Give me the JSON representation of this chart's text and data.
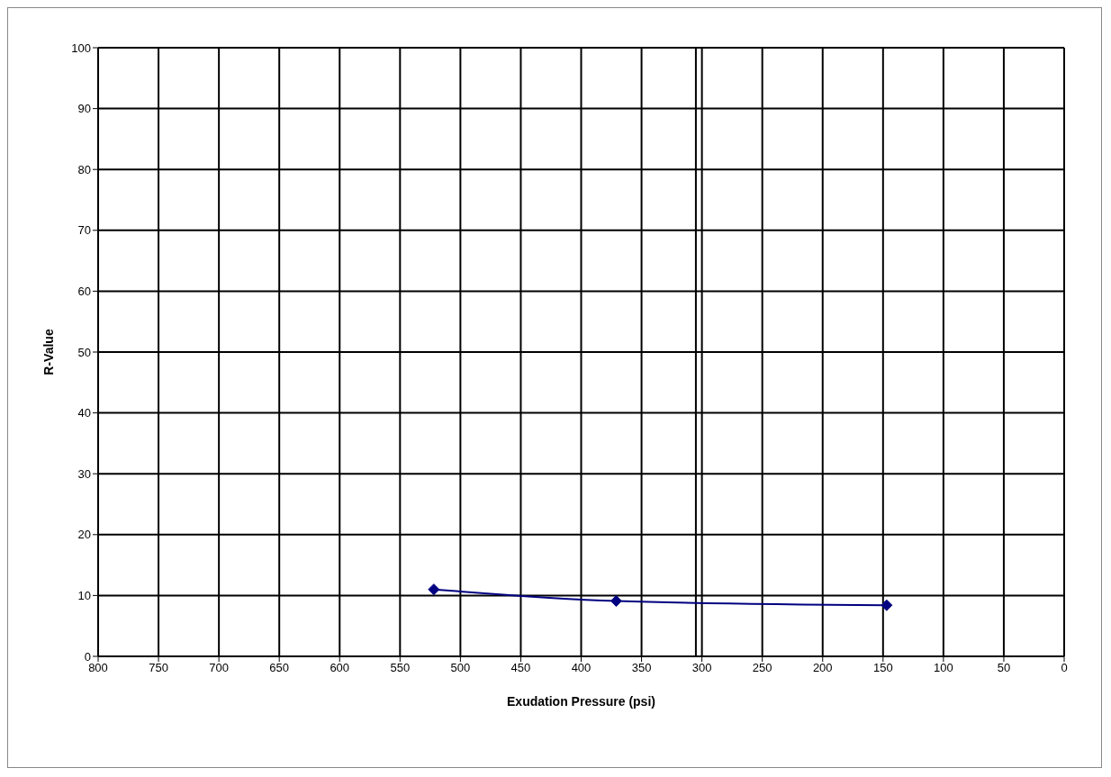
{
  "chart_data": {
    "type": "line",
    "xlabel": "Exudation Pressure (psi)",
    "ylabel": "R-Value",
    "x": [
      522,
      371,
      147
    ],
    "series": [
      {
        "color": "#000080",
        "values": [
          11.0,
          9.1,
          8.4
        ]
      }
    ],
    "xlim": [
      800,
      0
    ],
    "xticks": [
      800,
      750,
      700,
      650,
      600,
      550,
      500,
      450,
      400,
      350,
      300,
      250,
      200,
      150,
      100,
      50,
      0
    ],
    "ylim": [
      0,
      100
    ],
    "yticks": [
      0,
      10,
      20,
      30,
      40,
      50,
      60,
      70,
      80,
      90,
      100
    ],
    "grid": true,
    "marker": "diamond",
    "line_style": "solid",
    "ref_lines": [
      {
        "axis": "x",
        "value": 305,
        "color": "#000000"
      }
    ]
  }
}
